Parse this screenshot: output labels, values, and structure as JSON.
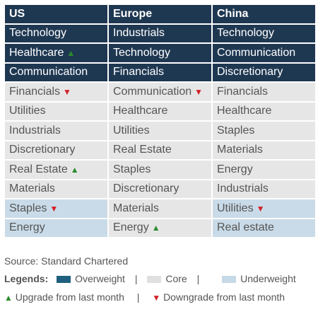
{
  "headers": [
    "US",
    "Europe",
    "China"
  ],
  "rows": [
    [
      {
        "text": "Technology",
        "tier": "ow",
        "arrow": ""
      },
      {
        "text": "Industrials",
        "tier": "ow",
        "arrow": ""
      },
      {
        "text": "Technology",
        "tier": "ow",
        "arrow": ""
      }
    ],
    [
      {
        "text": "Healthcare",
        "tier": "ow",
        "arrow": "up"
      },
      {
        "text": "Technology",
        "tier": "ow",
        "arrow": ""
      },
      {
        "text": "Communication",
        "tier": "ow",
        "arrow": ""
      }
    ],
    [
      {
        "text": "Communication",
        "tier": "ow",
        "arrow": ""
      },
      {
        "text": "Financials",
        "tier": "ow",
        "arrow": ""
      },
      {
        "text": "Discretionary",
        "tier": "ow",
        "arrow": ""
      }
    ],
    [
      {
        "text": "Financials",
        "tier": "core",
        "arrow": "down"
      },
      {
        "text": "Communication",
        "tier": "core",
        "arrow": "down"
      },
      {
        "text": "Financials",
        "tier": "core",
        "arrow": ""
      }
    ],
    [
      {
        "text": "Utilities",
        "tier": "core",
        "arrow": ""
      },
      {
        "text": "Healthcare",
        "tier": "core",
        "arrow": ""
      },
      {
        "text": "Healthcare",
        "tier": "core",
        "arrow": ""
      }
    ],
    [
      {
        "text": "Industrials",
        "tier": "core",
        "arrow": ""
      },
      {
        "text": "Utilities",
        "tier": "core",
        "arrow": ""
      },
      {
        "text": "Staples",
        "tier": "core",
        "arrow": ""
      }
    ],
    [
      {
        "text": "Discretionary",
        "tier": "core",
        "arrow": ""
      },
      {
        "text": "Real Estate",
        "tier": "core",
        "arrow": ""
      },
      {
        "text": "Materials",
        "tier": "core",
        "arrow": ""
      }
    ],
    [
      {
        "text": "Real Estate",
        "tier": "core",
        "arrow": "up"
      },
      {
        "text": "Staples",
        "tier": "core",
        "arrow": ""
      },
      {
        "text": "Energy",
        "tier": "core",
        "arrow": ""
      }
    ],
    [
      {
        "text": "Materials",
        "tier": "core",
        "arrow": ""
      },
      {
        "text": "Discretionary",
        "tier": "core",
        "arrow": ""
      },
      {
        "text": "Industrials",
        "tier": "core",
        "arrow": ""
      }
    ],
    [
      {
        "text": "Staples",
        "tier": "uw",
        "arrow": "down"
      },
      {
        "text": "Materials",
        "tier": "core",
        "arrow": ""
      },
      {
        "text": "Utilities",
        "tier": "uw",
        "arrow": "down"
      }
    ],
    [
      {
        "text": "Energy",
        "tier": "uw",
        "arrow": ""
      },
      {
        "text": "Energy",
        "tier": "core",
        "arrow": "up"
      },
      {
        "text": "Real estate",
        "tier": "uw",
        "arrow": ""
      }
    ]
  ],
  "source": "Source: Standard Chartered",
  "legend": {
    "title": "Legends:",
    "overweight": "Overweight",
    "core": "Core",
    "underweight": "Underweight",
    "separator": "|",
    "upgrade": "Upgrade from last month",
    "downgrade": "Downgrade from last month"
  },
  "glyphs": {
    "up": "▲",
    "down": "▼"
  },
  "colors": {
    "overweight": "#1f3852",
    "core": "#e6e6e6",
    "underweight": "#c9dbe8",
    "upgrade": "#2a8a2a",
    "downgrade": "#d42128"
  }
}
